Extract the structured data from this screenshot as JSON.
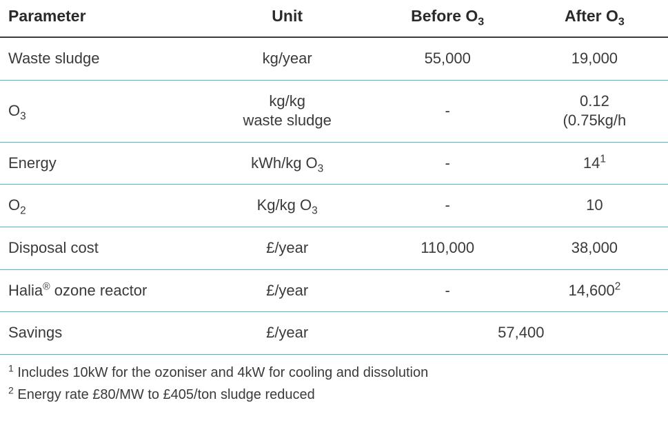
{
  "table": {
    "type": "table",
    "border_color": "#4bb8c9",
    "header_border_color": "#3a3a3a",
    "text_color": "#3a3a3a",
    "background_color": "#ffffff",
    "font_family": "Verdana",
    "header_fontsize": 23,
    "body_fontsize": 22,
    "footnote_fontsize": 20,
    "columns": [
      {
        "key": "param",
        "label": "Parameter",
        "align": "left",
        "width_pct": 30
      },
      {
        "key": "unit",
        "label": "Unit",
        "align": "center",
        "width_pct": 26
      },
      {
        "key": "before",
        "label_html": "Before O<sub>3</sub>",
        "label_plain": "Before O3",
        "align": "center",
        "width_pct": 22
      },
      {
        "key": "after",
        "label_html": "After O<sub>3</sub>",
        "label_plain": "After O3",
        "align": "center",
        "width_pct": 22
      }
    ],
    "rows": [
      {
        "param": {
          "text": "Waste sludge"
        },
        "unit": {
          "text": "kg/year"
        },
        "before": {
          "text": "55,000"
        },
        "after": {
          "text": "19,000"
        }
      },
      {
        "param": {
          "text_plain": "O3",
          "html": "O<sub>3</sub>"
        },
        "unit": {
          "text_plain": "kg/kg waste sludge",
          "line1": "kg/kg",
          "line2": "waste sludge"
        },
        "before": {
          "text": "-"
        },
        "after": {
          "text_plain": "0.12 (0.75kg/h",
          "line1": "0.12",
          "line2": "(0.75kg/h"
        }
      },
      {
        "param": {
          "text": "Energy"
        },
        "unit": {
          "text_plain": "kWh/kg O3",
          "html": "kWh/kg O<sub>3</sub>"
        },
        "before": {
          "text": "-"
        },
        "after": {
          "text_plain": "14¹",
          "html": "14<sup>1</sup>"
        }
      },
      {
        "param": {
          "text_plain": "O2",
          "html": "O<sub>2</sub>"
        },
        "unit": {
          "text_plain": "Kg/kg O3",
          "html": "Kg/kg O<sub>3</sub>"
        },
        "before": {
          "text": "-"
        },
        "after": {
          "text": "10"
        }
      },
      {
        "param": {
          "text": "Disposal cost"
        },
        "unit": {
          "text": "£/year"
        },
        "before": {
          "text": "110,000"
        },
        "after": {
          "text": "38,000"
        }
      },
      {
        "param": {
          "text_plain": "Halia® ozone reactor",
          "html": "Halia<sup>®</sup> ozone reactor"
        },
        "unit": {
          "text": "£/year"
        },
        "before": {
          "text": "-"
        },
        "after": {
          "text_plain": "14,600²",
          "html": "14,600<sup>2</sup>"
        }
      },
      {
        "param": {
          "text": "Savings"
        },
        "unit": {
          "text": "£/year"
        },
        "before_after_merged": {
          "text": "57,400"
        }
      }
    ],
    "footnotes": [
      {
        "marker": "1",
        "text": "Includes 10kW for the ozoniser and 4kW for cooling and dissolution"
      },
      {
        "marker": "2",
        "text": "Energy rate £80/MW to £405/ton sludge reduced"
      }
    ]
  }
}
